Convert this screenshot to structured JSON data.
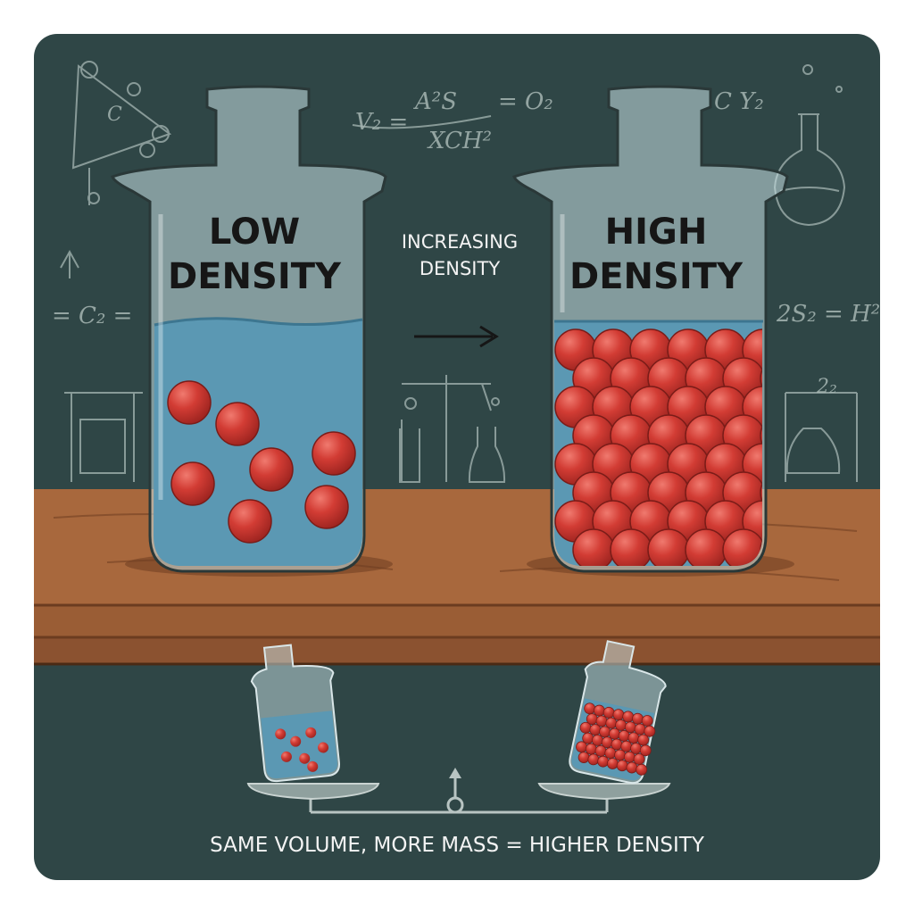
{
  "jars": {
    "low": {
      "label": "LOW\nDENSITY"
    },
    "high": {
      "label": "HIGH\nDENSITY"
    }
  },
  "arrow_label": "INCREASING\nDENSITY",
  "caption": "SAME VOLUME, MORE MASS = HIGHER DENSITY",
  "chalk_formulas": {
    "top": "V₂ = A²S / XCH² = O₂",
    "top_right": "C Y₂",
    "left": "= C₂ =",
    "right": "2S₂ = H²",
    "triangle": "C",
    "far_right": "2₂"
  },
  "colors": {
    "chalkboard": "#2f4646",
    "frame": "#dcdcdc",
    "wood": "#a8683d",
    "wood_dark": "#7a4626",
    "glass": "#c9e1e6",
    "liquid": "#5b98b3",
    "ball": "#cf3b35",
    "chalk": "#9fb0ad"
  }
}
